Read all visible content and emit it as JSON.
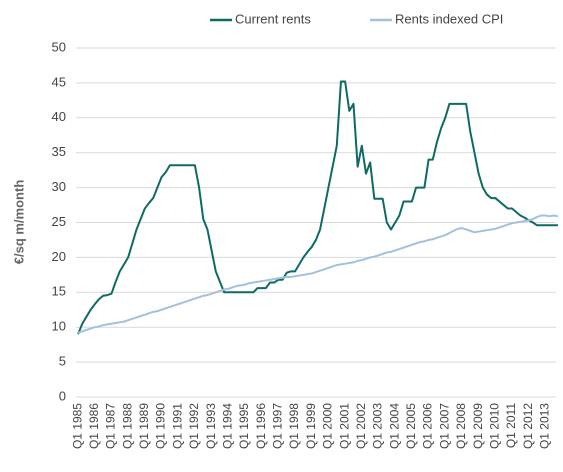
{
  "chart_data": {
    "type": "line",
    "y_label": "€/sq m/month",
    "categories": [
      "Q1 1985",
      null,
      null,
      null,
      "Q1 1986",
      null,
      null,
      null,
      "Q1 1987",
      null,
      null,
      null,
      "Q1 1988",
      null,
      null,
      null,
      "Q1 1989",
      null,
      null,
      null,
      "Q1 1990",
      null,
      null,
      null,
      "Q1 1991",
      null,
      null,
      null,
      "Q1 1992",
      null,
      null,
      null,
      "Q1 1993",
      null,
      null,
      null,
      "Q1 1994",
      null,
      null,
      null,
      "Q1 1995",
      null,
      null,
      null,
      "Q1 1996",
      null,
      null,
      null,
      "Q1 1997",
      null,
      null,
      null,
      "Q1 1998",
      null,
      null,
      null,
      "Q1 1999",
      null,
      null,
      null,
      "Q1 2000",
      null,
      null,
      null,
      "Q1 2001",
      null,
      null,
      null,
      "Q1 2002",
      null,
      null,
      null,
      "Q1 2003",
      null,
      null,
      null,
      "Q1 2004",
      null,
      null,
      null,
      "Q1 2005",
      null,
      null,
      null,
      "Q1 2006",
      null,
      null,
      null,
      "Q1 2007",
      null,
      null,
      null,
      "Q1 2008",
      null,
      null,
      null,
      "Q1 2009",
      null,
      null,
      null,
      "Q1 2010",
      null,
      null,
      null,
      "Q1 2011",
      null,
      null,
      null,
      "Q1 2012",
      null,
      null,
      null,
      "Q1 2013",
      null,
      null,
      null
    ],
    "series": [
      {
        "name": "Current rents",
        "color": "#0f6a66",
        "values": [
          9,
          10.5,
          11.5,
          12.5,
          13.3,
          14,
          14.5,
          14.6,
          14.8,
          16.5,
          18,
          19,
          20,
          22,
          24,
          25.5,
          27,
          27.8,
          28.5,
          30,
          31.5,
          32.2,
          33.2,
          33.2,
          33.2,
          33.2,
          33.2,
          33.2,
          33.2,
          30,
          25.5,
          24,
          21,
          18,
          16.5,
          15,
          15,
          15,
          15,
          15,
          15,
          15,
          15,
          15.6,
          15.6,
          15.6,
          16.4,
          16.4,
          16.8,
          16.8,
          17.8,
          18,
          18,
          19,
          20,
          20.8,
          21.5,
          22.5,
          24,
          27,
          30,
          33,
          36,
          45.2,
          45.2,
          41,
          42,
          33,
          36,
          32,
          33.6,
          28.4,
          28.4,
          28.4,
          25,
          24,
          25,
          26,
          28,
          28,
          28,
          30,
          30,
          30,
          34,
          34,
          36.5,
          38.5,
          40,
          42,
          42,
          42,
          42,
          42,
          38,
          35,
          32,
          30,
          29,
          28.5,
          28.5,
          28,
          27.5,
          27,
          27,
          26.5,
          26,
          25.7,
          25.3,
          25,
          24.6,
          24.6,
          24.6,
          24.6,
          24.6,
          24.6
        ]
      },
      {
        "name": "Rents indexed CPI",
        "color": "#a3c1de",
        "values": [
          9.2,
          9.4,
          9.6,
          9.8,
          10,
          10.1,
          10.3,
          10.4,
          10.5,
          10.6,
          10.7,
          10.8,
          11,
          11.2,
          11.4,
          11.6,
          11.8,
          12,
          12.2,
          12.3,
          12.5,
          12.7,
          12.9,
          13.1,
          13.3,
          13.5,
          13.7,
          13.9,
          14.1,
          14.3,
          14.5,
          14.6,
          14.8,
          15,
          15.2,
          15.4,
          15.5,
          15.7,
          15.9,
          16,
          16.1,
          16.3,
          16.4,
          16.5,
          16.6,
          16.7,
          16.8,
          16.9,
          17,
          17.1,
          17.2,
          17.2,
          17.3,
          17.4,
          17.5,
          17.6,
          17.7,
          17.9,
          18.1,
          18.3,
          18.5,
          18.7,
          18.9,
          19,
          19.1,
          19.2,
          19.3,
          19.5,
          19.6,
          19.8,
          20,
          20.1,
          20.3,
          20.5,
          20.7,
          20.8,
          21,
          21.2,
          21.4,
          21.6,
          21.8,
          22,
          22.2,
          22.3,
          22.5,
          22.6,
          22.8,
          23,
          23.2,
          23.5,
          23.8,
          24.1,
          24.2,
          24,
          23.8,
          23.6,
          23.7,
          23.8,
          23.9,
          24,
          24.1,
          24.3,
          24.5,
          24.7,
          24.9,
          25,
          25.1,
          25.2,
          25.3,
          25.5,
          25.8,
          26,
          26,
          25.9,
          26,
          25.9
        ]
      }
    ],
    "ylim": [
      0,
      50
    ],
    "yticks": [
      0,
      5,
      10,
      15,
      20,
      25,
      30,
      35,
      40,
      45,
      50
    ],
    "grid": true,
    "legend": "top"
  }
}
